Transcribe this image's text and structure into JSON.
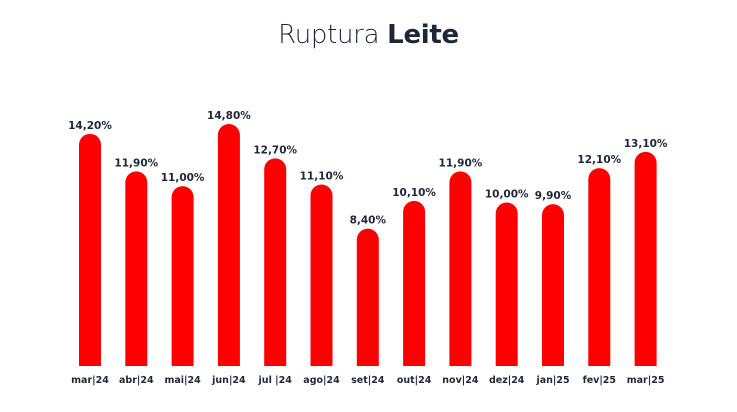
{
  "chart_data": {
    "type": "bar",
    "title": "Ruptura Leite",
    "title_parts": {
      "light": "Ruptura",
      "bold": "Leite"
    },
    "categories": [
      "mar|24",
      "abr|24",
      "mai|24",
      "jun|24",
      "jul |24",
      "ago|24",
      "set|24",
      "out|24",
      "nov|24",
      "dez|24",
      "jan|25",
      "fev|25",
      "mar|25"
    ],
    "values": [
      14.2,
      11.9,
      11.0,
      14.8,
      12.7,
      11.1,
      8.4,
      10.1,
      11.9,
      10.0,
      9.9,
      12.1,
      13.1
    ],
    "value_labels": [
      "14,20%",
      "11,90%",
      "11,00%",
      "14,80%",
      "12,70%",
      "11,10%",
      "8,40%",
      "10,10%",
      "11,90%",
      "10,00%",
      "9,90%",
      "12,10%",
      "13,10%"
    ],
    "bar_color": "#ff0000",
    "text_color": "#1d2738",
    "ylim": [
      0,
      15
    ],
    "grid": false,
    "legend": "none"
  }
}
